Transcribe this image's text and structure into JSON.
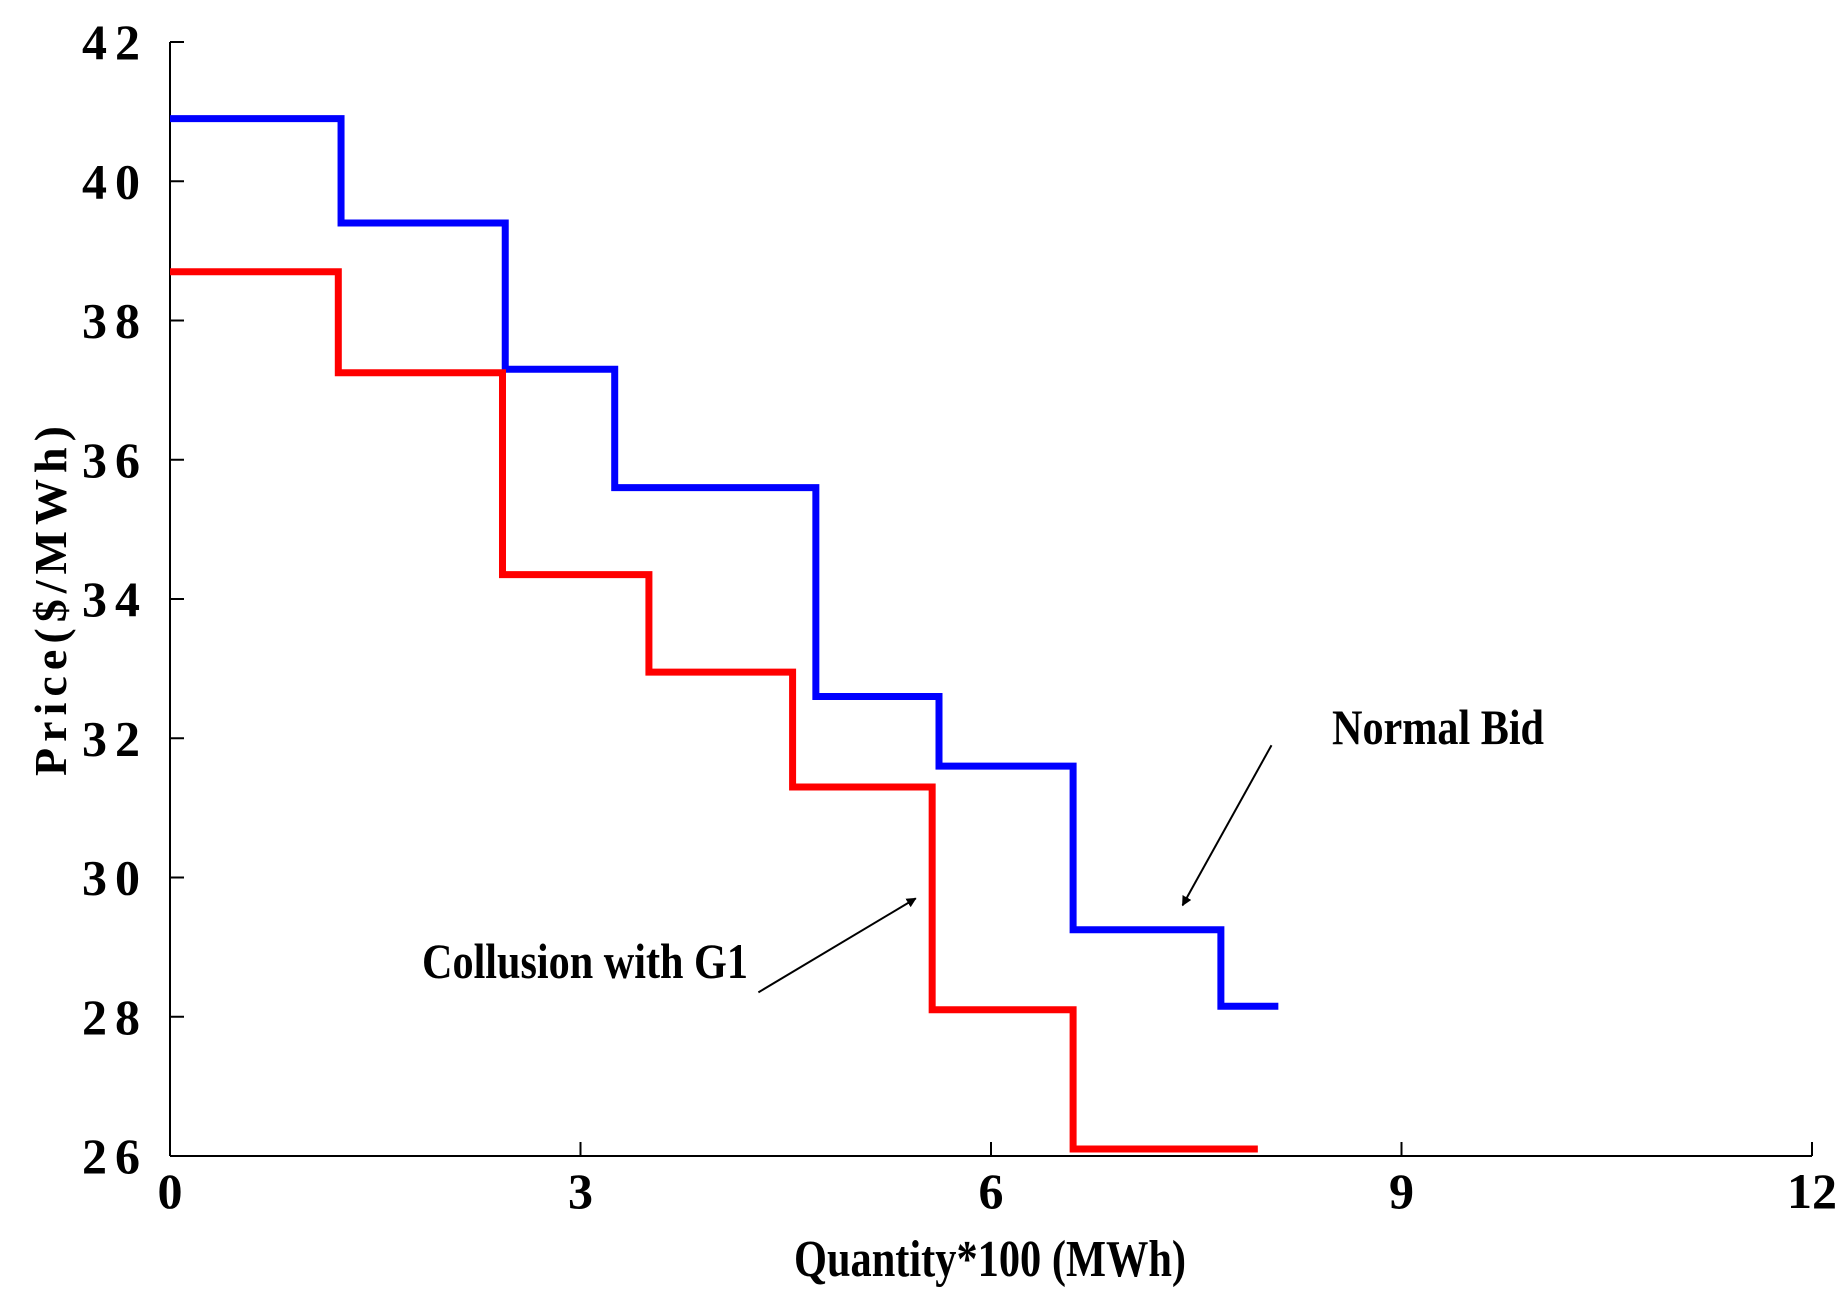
{
  "chart_data": {
    "type": "line",
    "step": true,
    "title": "",
    "xlabel": "Quantity*100 (MWh)",
    "ylabel": "Price($/MWh)",
    "xlim": [
      0,
      12
    ],
    "ylim": [
      26,
      42
    ],
    "xticks": [
      0,
      3,
      6,
      9,
      12
    ],
    "yticks": [
      26,
      28,
      30,
      32,
      34,
      36,
      38,
      40,
      42
    ],
    "xtick_labels": [
      "0",
      "3",
      "6",
      "9",
      "12"
    ],
    "ytick_labels": [
      "26",
      "28",
      "30",
      "32",
      "34",
      "36",
      "38",
      "40",
      "42"
    ],
    "grid": false,
    "series": [
      {
        "name": "Normal Bid",
        "color": "#0000ff",
        "x": [
          0,
          1.25,
          1.25,
          2.45,
          2.45,
          3.25,
          3.25,
          4.72,
          4.72,
          5.62,
          5.62,
          6.6,
          6.6,
          7.68,
          7.68,
          8.1
        ],
        "y": [
          40.9,
          40.9,
          39.4,
          39.4,
          37.3,
          37.3,
          35.6,
          35.6,
          32.6,
          32.6,
          31.6,
          31.6,
          29.25,
          29.25,
          28.15,
          28.15
        ]
      },
      {
        "name": "Collusion with G1",
        "color": "#ff0000",
        "x": [
          0,
          1.23,
          1.23,
          2.43,
          2.43,
          3.5,
          3.5,
          4.55,
          4.55,
          5.57,
          5.57,
          6.6,
          6.6,
          7.95
        ],
        "y": [
          38.7,
          38.7,
          37.25,
          37.25,
          34.35,
          34.35,
          32.95,
          32.95,
          31.3,
          31.3,
          28.1,
          28.1,
          26.1,
          26.1
        ]
      }
    ],
    "annotations": [
      {
        "text": "Normal Bid",
        "arrow_from": [
          8.05,
          31.9
        ],
        "arrow_to": [
          7.4,
          29.6
        ]
      },
      {
        "text": "Collusion with G1",
        "arrow_from": [
          4.3,
          28.35
        ],
        "arrow_to": [
          5.45,
          29.7
        ]
      }
    ]
  }
}
